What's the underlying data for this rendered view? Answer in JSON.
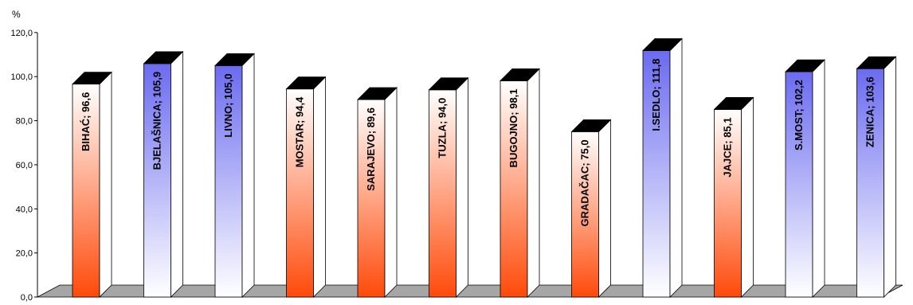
{
  "chart_data": {
    "type": "bar",
    "ylabel": "%",
    "ylim": [
      0,
      120
    ],
    "yticks": [
      "0,0",
      "20,0",
      "40,0",
      "60,0",
      "80,0",
      "100,0",
      "120,0"
    ],
    "grid": false,
    "legend": "none",
    "bar_style": "3d",
    "colors": {
      "above": "#6b6bf0",
      "below": "#ff4a0a",
      "top": "#000000",
      "floor": "#a6a6a6"
    },
    "categories": [
      "BIHAĆ",
      "BJELAŠNICA",
      "LIVNO",
      "MOSTAR",
      "SARAJEVO",
      "TUZLA",
      "BUGOJNO",
      "GRADAČAC",
      "I.SEDLO",
      "JAJCE",
      "S.MOST",
      "ZENICA"
    ],
    "values": [
      96.6,
      105.9,
      105.0,
      94.4,
      89.6,
      94.0,
      98.1,
      75.0,
      111.8,
      85.1,
      102.2,
      103.6
    ],
    "labels": [
      "BIHAĆ; 96,6",
      "BJELAŠNICA; 105,9",
      "LIVNO; 105,0",
      "MOSTAR; 94,4",
      "SARAJEVO; 89,6",
      "TUZLA; 94,0",
      "BUGOJNO; 98,1",
      "GRADAČAC; 75,0",
      "I.SEDLO; 111,8",
      "JAJCE; 85,1",
      "S.MOST; 102,2",
      "ZENICA; 103,6"
    ]
  }
}
